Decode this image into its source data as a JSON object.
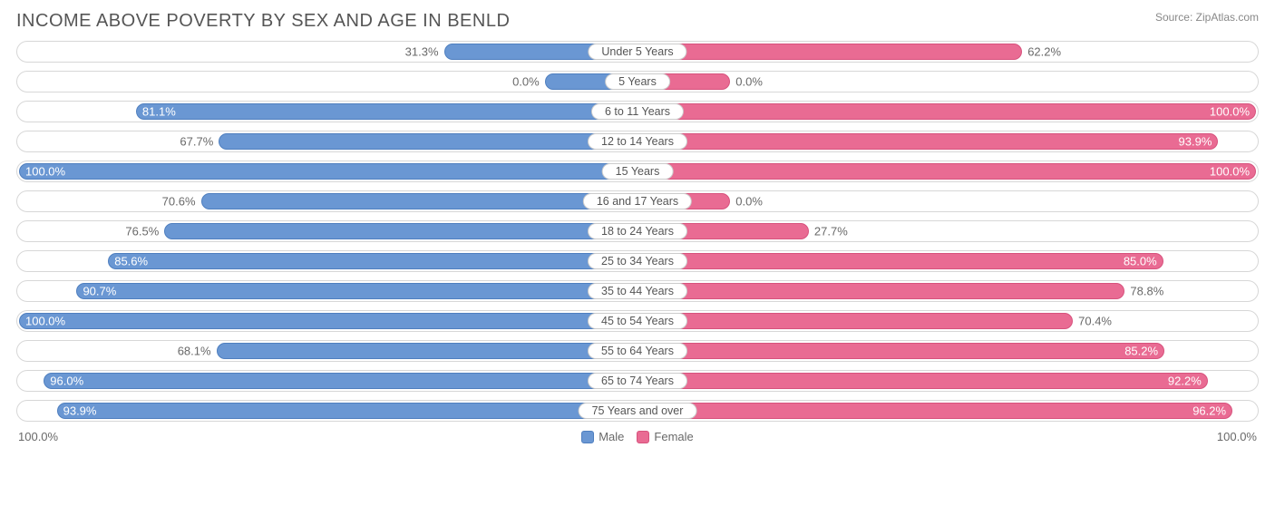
{
  "title": "INCOME ABOVE POVERTY BY SEX AND AGE IN BENLD",
  "source": "Source: ZipAtlas.com",
  "type": "diverging-bar",
  "colors": {
    "male_fill": "#6a97d3",
    "male_border": "#4f7fbf",
    "female_fill": "#e96b93",
    "female_border": "#d7527d",
    "row_border": "#d7d7d7",
    "background": "#ffffff",
    "label_text": "#696969",
    "title_text": "#555555"
  },
  "min_bar_pct": 15,
  "axis": {
    "left": "100.0%",
    "right": "100.0%",
    "max": 100
  },
  "legend": {
    "male": "Male",
    "female": "Female"
  },
  "rows": [
    {
      "category": "Under 5 Years",
      "male": 31.3,
      "female": 62.2,
      "male_label": "31.3%",
      "female_label": "62.2%"
    },
    {
      "category": "5 Years",
      "male": 0.0,
      "female": 0.0,
      "male_label": "0.0%",
      "female_label": "0.0%"
    },
    {
      "category": "6 to 11 Years",
      "male": 81.1,
      "female": 100.0,
      "male_label": "81.1%",
      "female_label": "100.0%"
    },
    {
      "category": "12 to 14 Years",
      "male": 67.7,
      "female": 93.9,
      "male_label": "67.7%",
      "female_label": "93.9%"
    },
    {
      "category": "15 Years",
      "male": 100.0,
      "female": 100.0,
      "male_label": "100.0%",
      "female_label": "100.0%"
    },
    {
      "category": "16 and 17 Years",
      "male": 70.6,
      "female": 0.0,
      "male_label": "70.6%",
      "female_label": "0.0%"
    },
    {
      "category": "18 to 24 Years",
      "male": 76.5,
      "female": 27.7,
      "male_label": "76.5%",
      "female_label": "27.7%"
    },
    {
      "category": "25 to 34 Years",
      "male": 85.6,
      "female": 85.0,
      "male_label": "85.6%",
      "female_label": "85.0%"
    },
    {
      "category": "35 to 44 Years",
      "male": 90.7,
      "female": 78.8,
      "male_label": "90.7%",
      "female_label": "78.8%"
    },
    {
      "category": "45 to 54 Years",
      "male": 100.0,
      "female": 70.4,
      "male_label": "100.0%",
      "female_label": "70.4%"
    },
    {
      "category": "55 to 64 Years",
      "male": 68.1,
      "female": 85.2,
      "male_label": "68.1%",
      "female_label": "85.2%"
    },
    {
      "category": "65 to 74 Years",
      "male": 96.0,
      "female": 92.2,
      "male_label": "96.0%",
      "female_label": "92.2%"
    },
    {
      "category": "75 Years and over",
      "male": 93.9,
      "female": 96.2,
      "male_label": "93.9%",
      "female_label": "96.2%"
    }
  ]
}
